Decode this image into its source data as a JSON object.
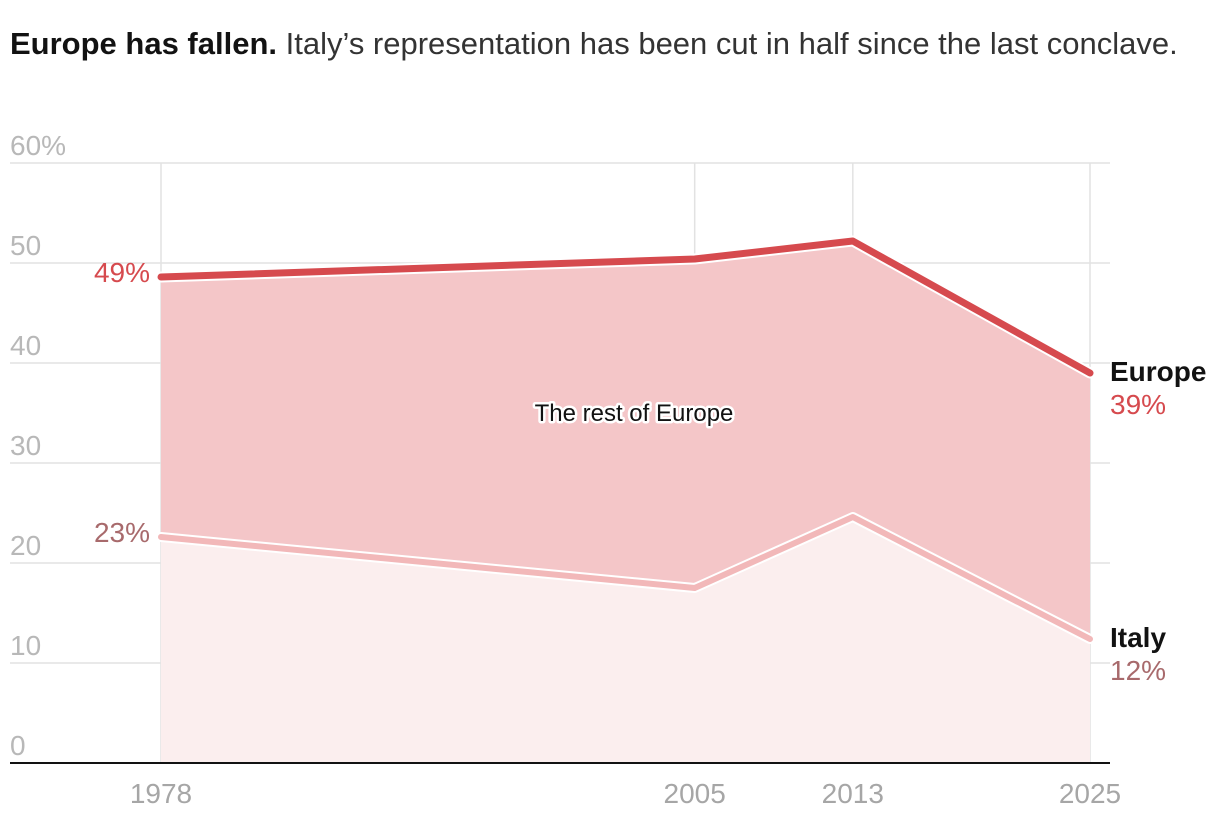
{
  "header": {
    "title_bold": "Europe has fallen.",
    "title_rest": "Italy’s representation has been cut in half since the last conclave."
  },
  "chart_data": {
    "type": "area",
    "title": "Europe has fallen. Italy’s representation has been cut in half since the last conclave.",
    "x": [
      1978,
      2005,
      2013,
      2025
    ],
    "x_tick_labels": [
      "1978",
      "2005",
      "2013",
      "2025"
    ],
    "ylim": [
      0,
      60
    ],
    "y_ticks": [
      0,
      10,
      20,
      30,
      40,
      50,
      60
    ],
    "y_tick_labels": [
      "0",
      "10",
      "20",
      "30",
      "40",
      "50",
      "60%"
    ],
    "grid": true,
    "series": [
      {
        "name": "Europe",
        "values": [
          48.6,
          50.4,
          52.2,
          39
        ],
        "color": "#d64a4e",
        "start_label": "49%",
        "end_label": "39%"
      },
      {
        "name": "Italy",
        "values": [
          22.6,
          17.5,
          24.6,
          12.4
        ],
        "color": "#f2b8b9",
        "start_label": "23%",
        "end_label": "12%"
      }
    ],
    "annotations": {
      "band_label": "The rest of Europe"
    },
    "colors": {
      "europe_line": "#d64a4e",
      "europe_band": "#f4c6c8",
      "italy_line": "#f2b8b9",
      "italy_fill": "#fbeeee",
      "grid": "#e2e2e2",
      "axis": "#121212"
    }
  }
}
